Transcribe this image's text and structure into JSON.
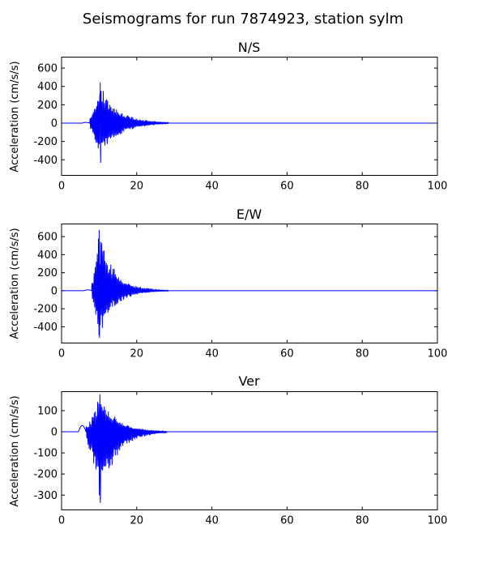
{
  "figure": {
    "title": "Seismograms for run 7874923, station sylm"
  },
  "colors": {
    "trace": "#0000ff",
    "axes": "#000000",
    "background": "#ffffff"
  },
  "chart_data": [
    {
      "type": "line",
      "title": "N/S",
      "xlabel": "",
      "ylabel": "Acceleration (cm/s/s)",
      "xlim": [
        0,
        100
      ],
      "ylim": [
        -570,
        720
      ],
      "xticks": [
        0,
        20,
        40,
        60,
        80,
        100
      ],
      "yticks": [
        -400,
        -200,
        0,
        200,
        400,
        600
      ],
      "grid": false,
      "envelope": {
        "onset": 7.5,
        "peak_time": 10.3,
        "end": 28.5,
        "max_pos": 440,
        "max_neg": -430,
        "decay": 4.6,
        "precursor": 8
      }
    },
    {
      "type": "line",
      "title": "E/W",
      "xlabel": "",
      "ylabel": "Acceleration (cm/s/s)",
      "xlim": [
        0,
        100
      ],
      "ylim": [
        -580,
        740
      ],
      "xticks": [
        0,
        20,
        40,
        60,
        80,
        100
      ],
      "yticks": [
        -400,
        -200,
        0,
        200,
        400,
        600
      ],
      "grid": false,
      "envelope": {
        "onset": 8.0,
        "peak_time": 10.0,
        "end": 28.5,
        "max_pos": 670,
        "max_neg": -520,
        "decay": 4.0,
        "precursor": 10
      }
    },
    {
      "type": "line",
      "title": "Ver",
      "xlabel": "",
      "ylabel": "Acceleration (cm/s/s)",
      "xlim": [
        0,
        100
      ],
      "ylim": [
        -370,
        190
      ],
      "xticks": [
        0,
        20,
        40,
        60,
        80,
        100
      ],
      "yticks": [
        -300,
        -200,
        -100,
        0,
        100
      ],
      "grid": false,
      "envelope": {
        "onset": 6.5,
        "peak_time": 10.2,
        "end": 28.0,
        "max_pos": 175,
        "max_neg": -335,
        "decay": 4.4,
        "precursor": 30
      }
    }
  ]
}
